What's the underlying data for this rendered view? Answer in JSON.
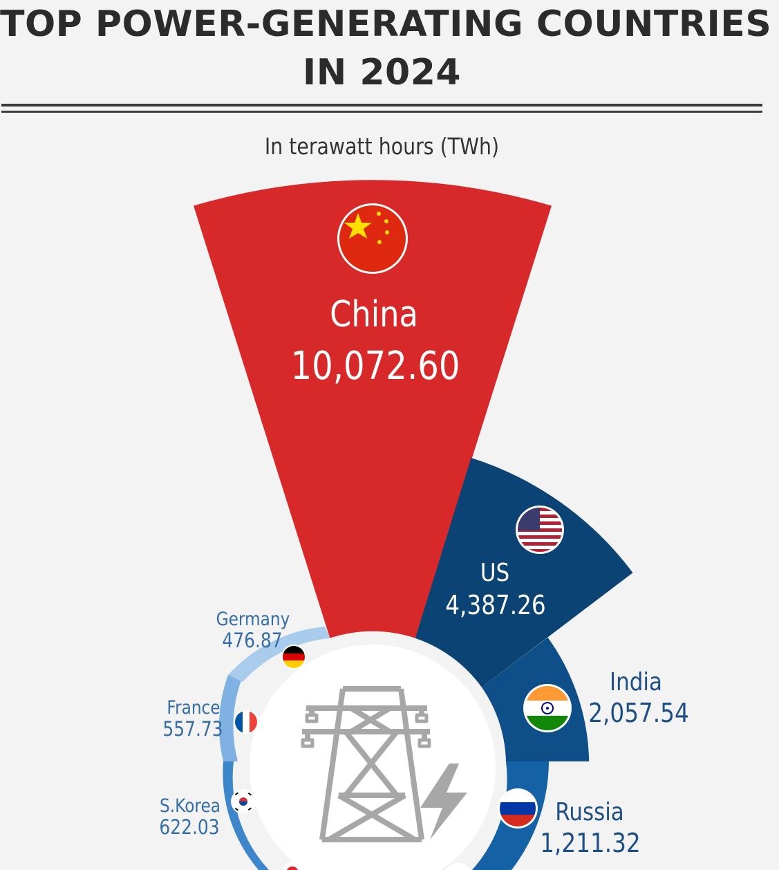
{
  "title_line1": "TOP POWER-GENERATING COUNTRIES",
  "title_line2": "IN 2024",
  "subtitle": "In terawatt hours (TWh)",
  "colors": {
    "china": "#d7282a",
    "us": "#0b4474",
    "india": "#0e4f8a",
    "russia": "#1561a6",
    "ring_dark": "#3d86c9",
    "ring_light": "#7fb2e3",
    "germany": "#a9cbec",
    "icon_gray": "#a7a7a7"
  },
  "chart_data": {
    "type": "pie",
    "style": "radial-sector",
    "unit": "TWh",
    "series": [
      {
        "name": "China",
        "value": 10072.6,
        "label": "10,072.60",
        "flag": "china-flag-icon"
      },
      {
        "name": "US",
        "value": 4387.26,
        "label": "4,387.26",
        "flag": "us-flag-icon"
      },
      {
        "name": "India",
        "value": 2057.54,
        "label": "2,057.54",
        "flag": "india-flag-icon"
      },
      {
        "name": "Russia",
        "value": 1211.32,
        "label": "1,211.32",
        "flag": "russia-flag-icon"
      },
      {
        "name": "S.Korea",
        "value": 622.03,
        "label": "622.03",
        "flag": "south-korea-flag-icon"
      },
      {
        "name": "France",
        "value": 557.73,
        "label": "557.73",
        "flag": "france-flag-icon"
      },
      {
        "name": "Germany",
        "value": 476.87,
        "label": "476.87",
        "flag": "germany-flag-icon"
      }
    ]
  }
}
